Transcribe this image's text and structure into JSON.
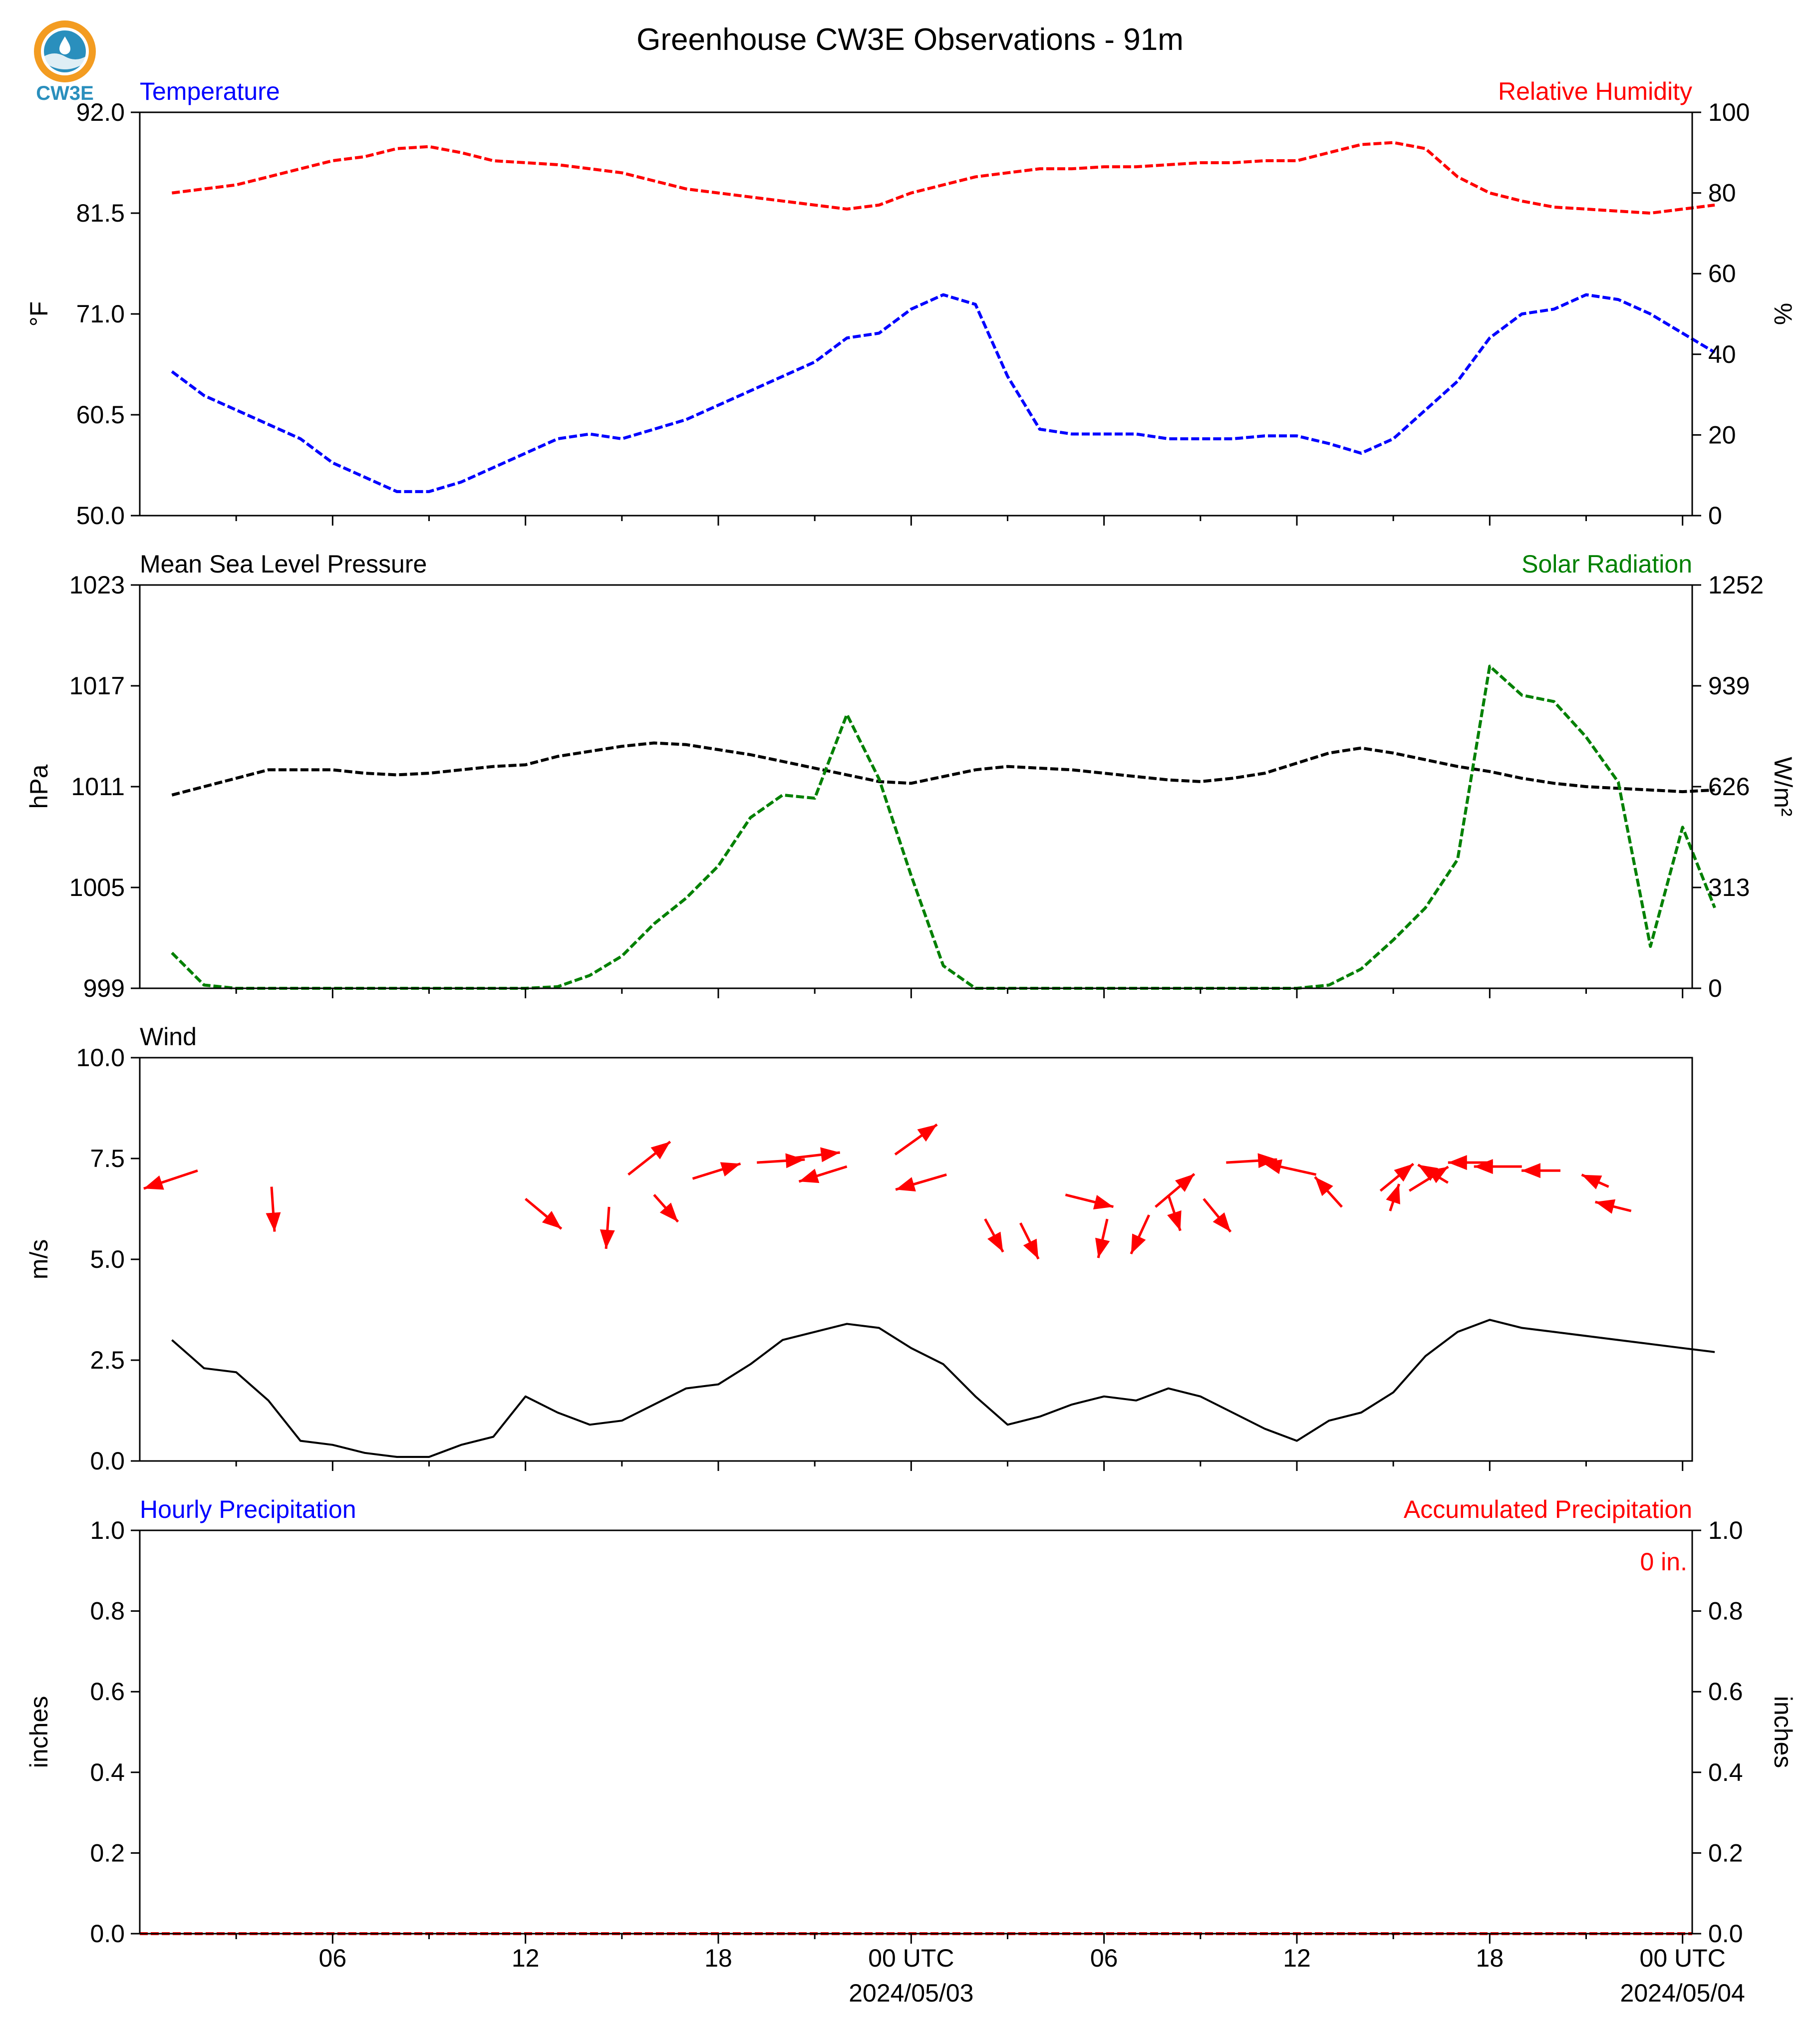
{
  "title": "Greenhouse CW3E Observations - 91m",
  "logo": {
    "text": "CW3E"
  },
  "colors": {
    "blue": "#0000ff",
    "red": "#ff0000",
    "green": "#008000",
    "black": "#000000",
    "logo_orange": "#f39c21",
    "logo_blue": "#2a8fbd"
  },
  "x_axis": {
    "tick_labels": [
      "06",
      "12",
      "18",
      "00 UTC",
      "06",
      "12",
      "18",
      "00 UTC"
    ],
    "date_labels": [
      "2024/05/03",
      "2024/05/04"
    ]
  },
  "chart_data": [
    {
      "id": "temp_rh",
      "type": "line",
      "left_title": "Temperature",
      "right_title": "Relative Humidity",
      "ylabel_left": "°F",
      "ylabel_right": "%",
      "ylim_left": [
        50.0,
        92.0
      ],
      "ylim_right": [
        0,
        100
      ],
      "yticks_left": [
        "50.0",
        "60.5",
        "71.0",
        "81.5",
        "92.0"
      ],
      "yticks_right": [
        "0",
        "20",
        "40",
        "60",
        "80",
        "100"
      ],
      "x_hours": [
        1,
        2,
        3,
        4,
        5,
        6,
        7,
        8,
        9,
        10,
        11,
        12,
        13,
        14,
        15,
        16,
        17,
        18,
        19,
        20,
        21,
        22,
        23,
        24,
        25,
        26,
        27,
        28,
        29,
        30,
        31,
        32,
        33,
        34,
        35,
        36,
        37,
        38,
        39,
        40,
        41,
        42,
        43,
        44,
        45,
        46,
        47,
        48,
        49
      ],
      "series": [
        {
          "name": "Temperature",
          "axis": "left",
          "color": "#0000ff",
          "values": [
            65,
            62.5,
            61,
            59.5,
            58,
            55.5,
            54,
            52.5,
            52.5,
            53.5,
            55,
            56.5,
            58,
            58.5,
            58,
            59,
            60,
            61.5,
            63,
            64.5,
            66,
            68.5,
            69,
            71.5,
            73,
            72,
            64.5,
            59,
            58.5,
            58.5,
            58.5,
            58,
            58,
            58,
            58.3,
            58.3,
            57.5,
            56.5,
            58,
            61,
            64,
            68.5,
            71,
            71.5,
            73,
            72.5,
            71,
            69,
            67
          ]
        },
        {
          "name": "Relative Humidity",
          "axis": "right",
          "color": "#ff0000",
          "values": [
            80,
            81,
            82,
            84,
            86,
            88,
            89,
            91,
            91.5,
            90,
            88,
            87.5,
            87,
            86,
            85,
            83,
            81,
            80,
            79,
            78,
            77,
            76,
            77,
            80,
            82,
            84,
            85,
            86,
            86,
            86.5,
            86.5,
            87,
            87.5,
            87.5,
            88,
            88,
            90,
            92,
            92.5,
            91,
            84,
            80,
            78,
            76.5,
            76,
            75.5,
            75,
            76,
            77
          ]
        }
      ]
    },
    {
      "id": "pressure_solar",
      "type": "line",
      "left_title": "Mean Sea Level Pressure",
      "right_title": "Solar Radiation",
      "ylabel_left": "hPa",
      "ylabel_right": "W/m²",
      "ylim_left": [
        999,
        1023
      ],
      "ylim_right": [
        0,
        1252
      ],
      "yticks_left": [
        "999",
        "1005",
        "1011",
        "1017",
        "1023"
      ],
      "yticks_right": [
        "0",
        "313",
        "626",
        "939",
        "1252"
      ],
      "x_hours": [
        1,
        2,
        3,
        4,
        5,
        6,
        7,
        8,
        9,
        10,
        11,
        12,
        13,
        14,
        15,
        16,
        17,
        18,
        19,
        20,
        21,
        22,
        23,
        24,
        25,
        26,
        27,
        28,
        29,
        30,
        31,
        32,
        33,
        34,
        35,
        36,
        37,
        38,
        39,
        40,
        41,
        42,
        43,
        44,
        45,
        46,
        47,
        48,
        49
      ],
      "series": [
        {
          "name": "Mean Sea Level Pressure",
          "axis": "left",
          "color": "#000000",
          "values": [
            1010.5,
            1011,
            1011.5,
            1012,
            1012,
            1012,
            1011.8,
            1011.7,
            1011.8,
            1012,
            1012.2,
            1012.3,
            1012.8,
            1013.1,
            1013.4,
            1013.6,
            1013.5,
            1013.2,
            1012.9,
            1012.5,
            1012.1,
            1011.7,
            1011.3,
            1011.2,
            1011.6,
            1012,
            1012.2,
            1012.1,
            1012,
            1011.8,
            1011.6,
            1011.4,
            1011.3,
            1011.5,
            1011.8,
            1012.4,
            1013,
            1013.3,
            1013,
            1012.6,
            1012.2,
            1011.9,
            1011.5,
            1011.2,
            1011,
            1010.9,
            1010.8,
            1010.7,
            1010.8
          ]
        },
        {
          "name": "Solar Radiation",
          "axis": "right",
          "color": "#008000",
          "values": [
            110,
            10,
            0,
            0,
            0,
            0,
            0,
            0,
            0,
            0,
            0,
            0,
            5,
            40,
            100,
            200,
            280,
            380,
            530,
            600,
            590,
            850,
            650,
            350,
            70,
            0,
            0,
            0,
            0,
            0,
            0,
            0,
            0,
            0,
            0,
            0,
            10,
            60,
            150,
            250,
            400,
            1000,
            910,
            890,
            780,
            640,
            130,
            500,
            250
          ]
        }
      ]
    },
    {
      "id": "wind",
      "type": "line",
      "left_title": "Wind",
      "ylabel_left": "m/s",
      "ylim_left": [
        0.0,
        10.0
      ],
      "yticks_left": [
        "0.0",
        "2.5",
        "5.0",
        "7.5",
        "10.0"
      ],
      "x_hours": [
        1,
        2,
        3,
        4,
        5,
        6,
        7,
        8,
        9,
        10,
        11,
        12,
        13,
        14,
        15,
        16,
        17,
        18,
        19,
        20,
        21,
        22,
        23,
        24,
        25,
        26,
        27,
        28,
        29,
        30,
        31,
        32,
        33,
        34,
        35,
        36,
        37,
        38,
        39,
        40,
        41,
        42,
        43,
        44,
        45,
        46,
        47,
        48,
        49
      ],
      "series": [
        {
          "name": "Wind",
          "axis": "left",
          "color": "#000000",
          "values": [
            3,
            2.3,
            2.2,
            1.5,
            0.5,
            0.4,
            0.2,
            0.1,
            0.1,
            0.4,
            0.6,
            1.6,
            1.2,
            0.9,
            1,
            1.4,
            1.8,
            1.9,
            2.4,
            3,
            3.2,
            3.4,
            3.3,
            2.8,
            2.4,
            1.6,
            0.9,
            1.1,
            1.4,
            1.6,
            1.5,
            1.8,
            1.6,
            1.2,
            0.8,
            0.5,
            1,
            1.2,
            1.7,
            2.6,
            3.2,
            3.5,
            3.3,
            3.2,
            3.1,
            3,
            2.9,
            2.8,
            2.7
          ]
        }
      ],
      "arrows": {
        "color": "#ff0000",
        "items": [
          {
            "x": 1.8,
            "y": 7.2,
            "dx": -1.8,
            "dy": -0.6
          },
          {
            "x": 4.1,
            "y": 6.8,
            "dx": 0.1,
            "dy": -1.5
          },
          {
            "x": 12.0,
            "y": 6.5,
            "dx": 1.2,
            "dy": -1.0
          },
          {
            "x": 14.6,
            "y": 6.3,
            "dx": -0.1,
            "dy": -1.4
          },
          {
            "x": 15.2,
            "y": 7.1,
            "dx": 1.4,
            "dy": 1.1
          },
          {
            "x": 16.0,
            "y": 6.6,
            "dx": 0.8,
            "dy": -0.9
          },
          {
            "x": 17.2,
            "y": 7.0,
            "dx": 1.6,
            "dy": 0.5
          },
          {
            "x": 19.2,
            "y": 7.4,
            "dx": 1.6,
            "dy": 0.1
          },
          {
            "x": 20.2,
            "y": 7.5,
            "dx": 1.7,
            "dy": 0.2
          },
          {
            "x": 22.0,
            "y": 7.3,
            "dx": -1.6,
            "dy": -0.5
          },
          {
            "x": 23.5,
            "y": 7.6,
            "dx": 1.4,
            "dy": 1.0
          },
          {
            "x": 25.1,
            "y": 7.1,
            "dx": -1.7,
            "dy": -0.5
          },
          {
            "x": 26.3,
            "y": 6.0,
            "dx": 0.6,
            "dy": -1.1
          },
          {
            "x": 27.4,
            "y": 5.9,
            "dx": 0.6,
            "dy": -1.2
          },
          {
            "x": 28.8,
            "y": 6.6,
            "dx": 1.6,
            "dy": -0.4
          },
          {
            "x": 30.1,
            "y": 6.0,
            "dx": -0.3,
            "dy": -1.3
          },
          {
            "x": 31.4,
            "y": 6.1,
            "dx": -0.6,
            "dy": -1.3
          },
          {
            "x": 31.6,
            "y": 6.3,
            "dx": 1.3,
            "dy": 1.1
          },
          {
            "x": 32.0,
            "y": 6.6,
            "dx": 0.4,
            "dy": -1.2
          },
          {
            "x": 33.1,
            "y": 6.5,
            "dx": 0.9,
            "dy": -1.1
          },
          {
            "x": 33.8,
            "y": 7.4,
            "dx": 1.7,
            "dy": 0.1
          },
          {
            "x": 36.6,
            "y": 7.1,
            "dx": -1.8,
            "dy": 0.4
          },
          {
            "x": 37.4,
            "y": 6.3,
            "dx": -0.9,
            "dy": 1.0
          },
          {
            "x": 38.6,
            "y": 6.7,
            "dx": 1.1,
            "dy": 0.9
          },
          {
            "x": 38.9,
            "y": 6.2,
            "dx": 0.3,
            "dy": 0.9
          },
          {
            "x": 39.5,
            "y": 6.7,
            "dx": 1.3,
            "dy": 0.8
          },
          {
            "x": 40.7,
            "y": 6.9,
            "dx": -1.0,
            "dy": 0.6
          },
          {
            "x": 42.1,
            "y": 7.4,
            "dx": -1.5,
            "dy": 0.0
          },
          {
            "x": 43.0,
            "y": 7.3,
            "dx": -1.6,
            "dy": 0.0
          },
          {
            "x": 44.2,
            "y": 7.2,
            "dx": -1.3,
            "dy": 0.0
          },
          {
            "x": 45.7,
            "y": 6.8,
            "dx": -0.9,
            "dy": 0.4
          },
          {
            "x": 46.4,
            "y": 6.2,
            "dx": -1.2,
            "dy": 0.3
          }
        ]
      }
    },
    {
      "id": "precip",
      "type": "line",
      "left_title": "Hourly Precipitation",
      "right_title": "Accumulated Precipitation",
      "ylabel_left": "inches",
      "ylabel_right": "inches",
      "ylim_left": [
        0.0,
        1.0
      ],
      "ylim_right": [
        0.0,
        1.0
      ],
      "yticks_left": [
        "0.0",
        "0.2",
        "0.4",
        "0.6",
        "0.8",
        "1.0"
      ],
      "yticks_right": [
        "0.0",
        "0.2",
        "0.4",
        "0.6",
        "0.8",
        "1.0"
      ],
      "annotation": "0 in.",
      "series": [
        {
          "name": "Accumulated Precipitation",
          "axis": "right",
          "color": "#ff0000",
          "values": [
            0,
            0
          ]
        }
      ]
    }
  ]
}
